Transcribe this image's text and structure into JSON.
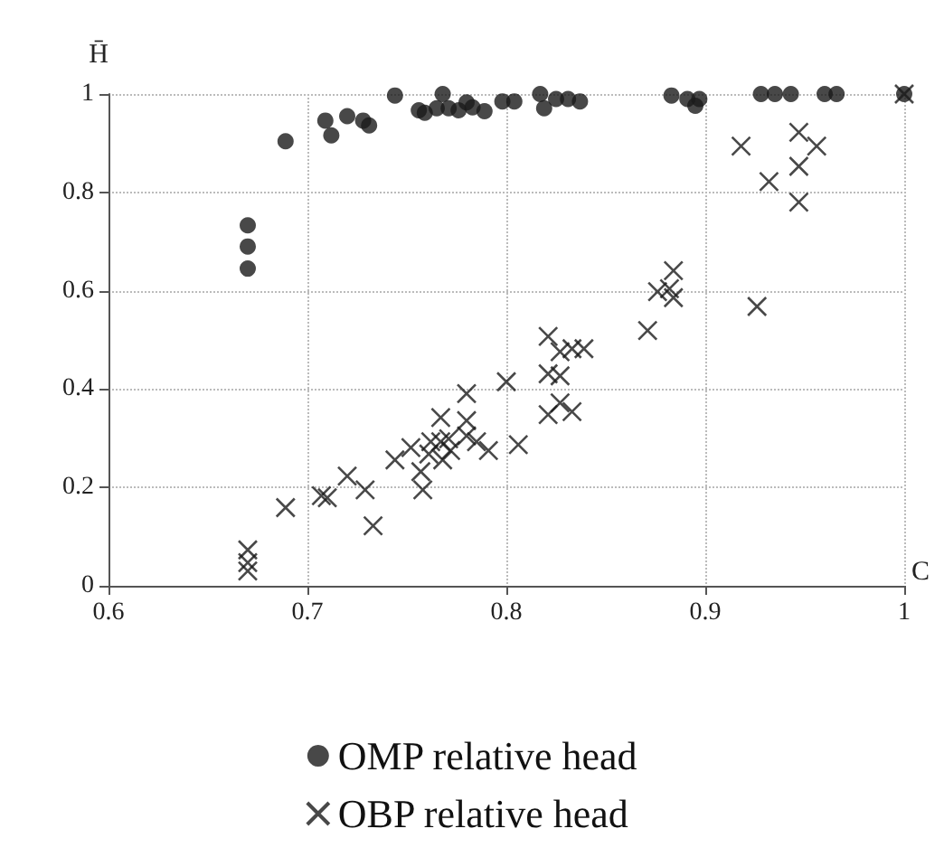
{
  "chart_data": {
    "type": "scatter",
    "xlabel": "C",
    "ylabel": "H̄",
    "xlim": [
      0.6,
      1
    ],
    "xticks": [
      0.6,
      0.7,
      0.8,
      0.9,
      1
    ],
    "ylim": [
      0,
      1
    ],
    "yticks": [
      0,
      0.2,
      0.4,
      0.6,
      0.8,
      1
    ],
    "grid": true,
    "legend": "bottom",
    "series": [
      {
        "name": "OMP relative head",
        "color": "#1a1a1a",
        "marker": "circle",
        "x": [
          0.67,
          0.67,
          0.67,
          0.689,
          0.709,
          0.712,
          0.72,
          0.728,
          0.731,
          0.744,
          0.756,
          0.759,
          0.765,
          0.768,
          0.771,
          0.776,
          0.78,
          0.783,
          0.789,
          0.798,
          0.804,
          0.817,
          0.819,
          0.825,
          0.831,
          0.837,
          0.883,
          0.891,
          0.895,
          0.897,
          0.928,
          0.935,
          0.943,
          0.96,
          0.966,
          1.0
        ],
        "values": [
          0.733,
          0.69,
          0.645,
          0.904,
          0.946,
          0.916,
          0.955,
          0.946,
          0.936,
          0.997,
          0.967,
          0.962,
          0.971,
          1.0,
          0.971,
          0.967,
          0.983,
          0.973,
          0.965,
          0.985,
          0.985,
          1.0,
          0.971,
          0.99,
          0.99,
          0.985,
          0.997,
          0.99,
          0.976,
          0.99,
          1.0,
          1.0,
          1.0,
          1.0,
          1.0,
          1.0
        ]
      },
      {
        "name": "OBP relative head",
        "color": "#1a1a1a",
        "marker": "cross",
        "x": [
          0.67,
          0.67,
          0.67,
          0.689,
          0.707,
          0.71,
          0.72,
          0.729,
          0.733,
          0.744,
          0.752,
          0.757,
          0.758,
          0.761,
          0.762,
          0.767,
          0.767,
          0.768,
          0.771,
          0.772,
          0.78,
          0.78,
          0.78,
          0.785,
          0.791,
          0.8,
          0.806,
          0.821,
          0.821,
          0.821,
          0.827,
          0.827,
          0.827,
          0.833,
          0.833,
          0.839,
          0.871,
          0.876,
          0.884,
          0.884,
          0.882,
          0.926,
          0.918,
          0.932,
          0.947,
          0.956,
          0.947,
          0.947,
          1.0
        ],
        "values": [
          0.073,
          0.047,
          0.03,
          0.159,
          0.183,
          0.179,
          0.223,
          0.195,
          0.122,
          0.256,
          0.281,
          0.232,
          0.195,
          0.268,
          0.293,
          0.342,
          0.293,
          0.256,
          0.299,
          0.275,
          0.391,
          0.336,
          0.305,
          0.293,
          0.275,
          0.415,
          0.287,
          0.507,
          0.431,
          0.348,
          0.427,
          0.476,
          0.372,
          0.482,
          0.354,
          0.482,
          0.519,
          0.598,
          0.641,
          0.586,
          0.604,
          0.568,
          0.894,
          0.822,
          0.922,
          0.894,
          0.853,
          0.78,
          1.0
        ]
      }
    ]
  }
}
